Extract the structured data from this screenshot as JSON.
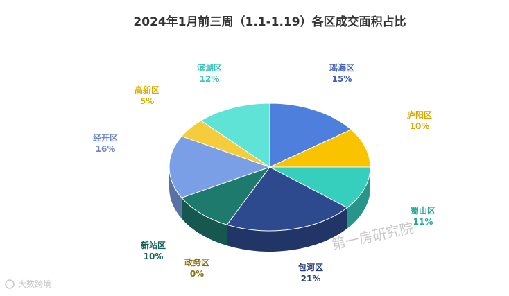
{
  "chart_data": {
    "type": "pie",
    "title": "2024年1月前三周（1.1-1.19）各区成交面积占比",
    "categories": [
      "瑶海区",
      "庐阳区",
      "蜀山区",
      "包河区",
      "政务区",
      "新站区",
      "经开区",
      "高新区",
      "滨湖区"
    ],
    "values": [
      15,
      10,
      11,
      21,
      0,
      10,
      16,
      5,
      12
    ],
    "value_labels": [
      "15%",
      "10%",
      "11%",
      "21%",
      "0%",
      "10%",
      "16%",
      "5%",
      "12%"
    ],
    "colors": [
      "#4f7fdc",
      "#f9c300",
      "#36cfbe",
      "#2e4a8e",
      "#a08a1a",
      "#1f7a6e",
      "#7b9fe6",
      "#f5cd3c",
      "#5fe3d6"
    ],
    "label_colors": [
      "#4262b8",
      "#d9a800",
      "#25a898",
      "#2a3f7c",
      "#8a7112",
      "#1a6259",
      "#6a86c8",
      "#d9b000",
      "#3dc4b8"
    ],
    "legend": "none",
    "watermark": "第一房研究院",
    "source_logo": "大数跨境"
  }
}
